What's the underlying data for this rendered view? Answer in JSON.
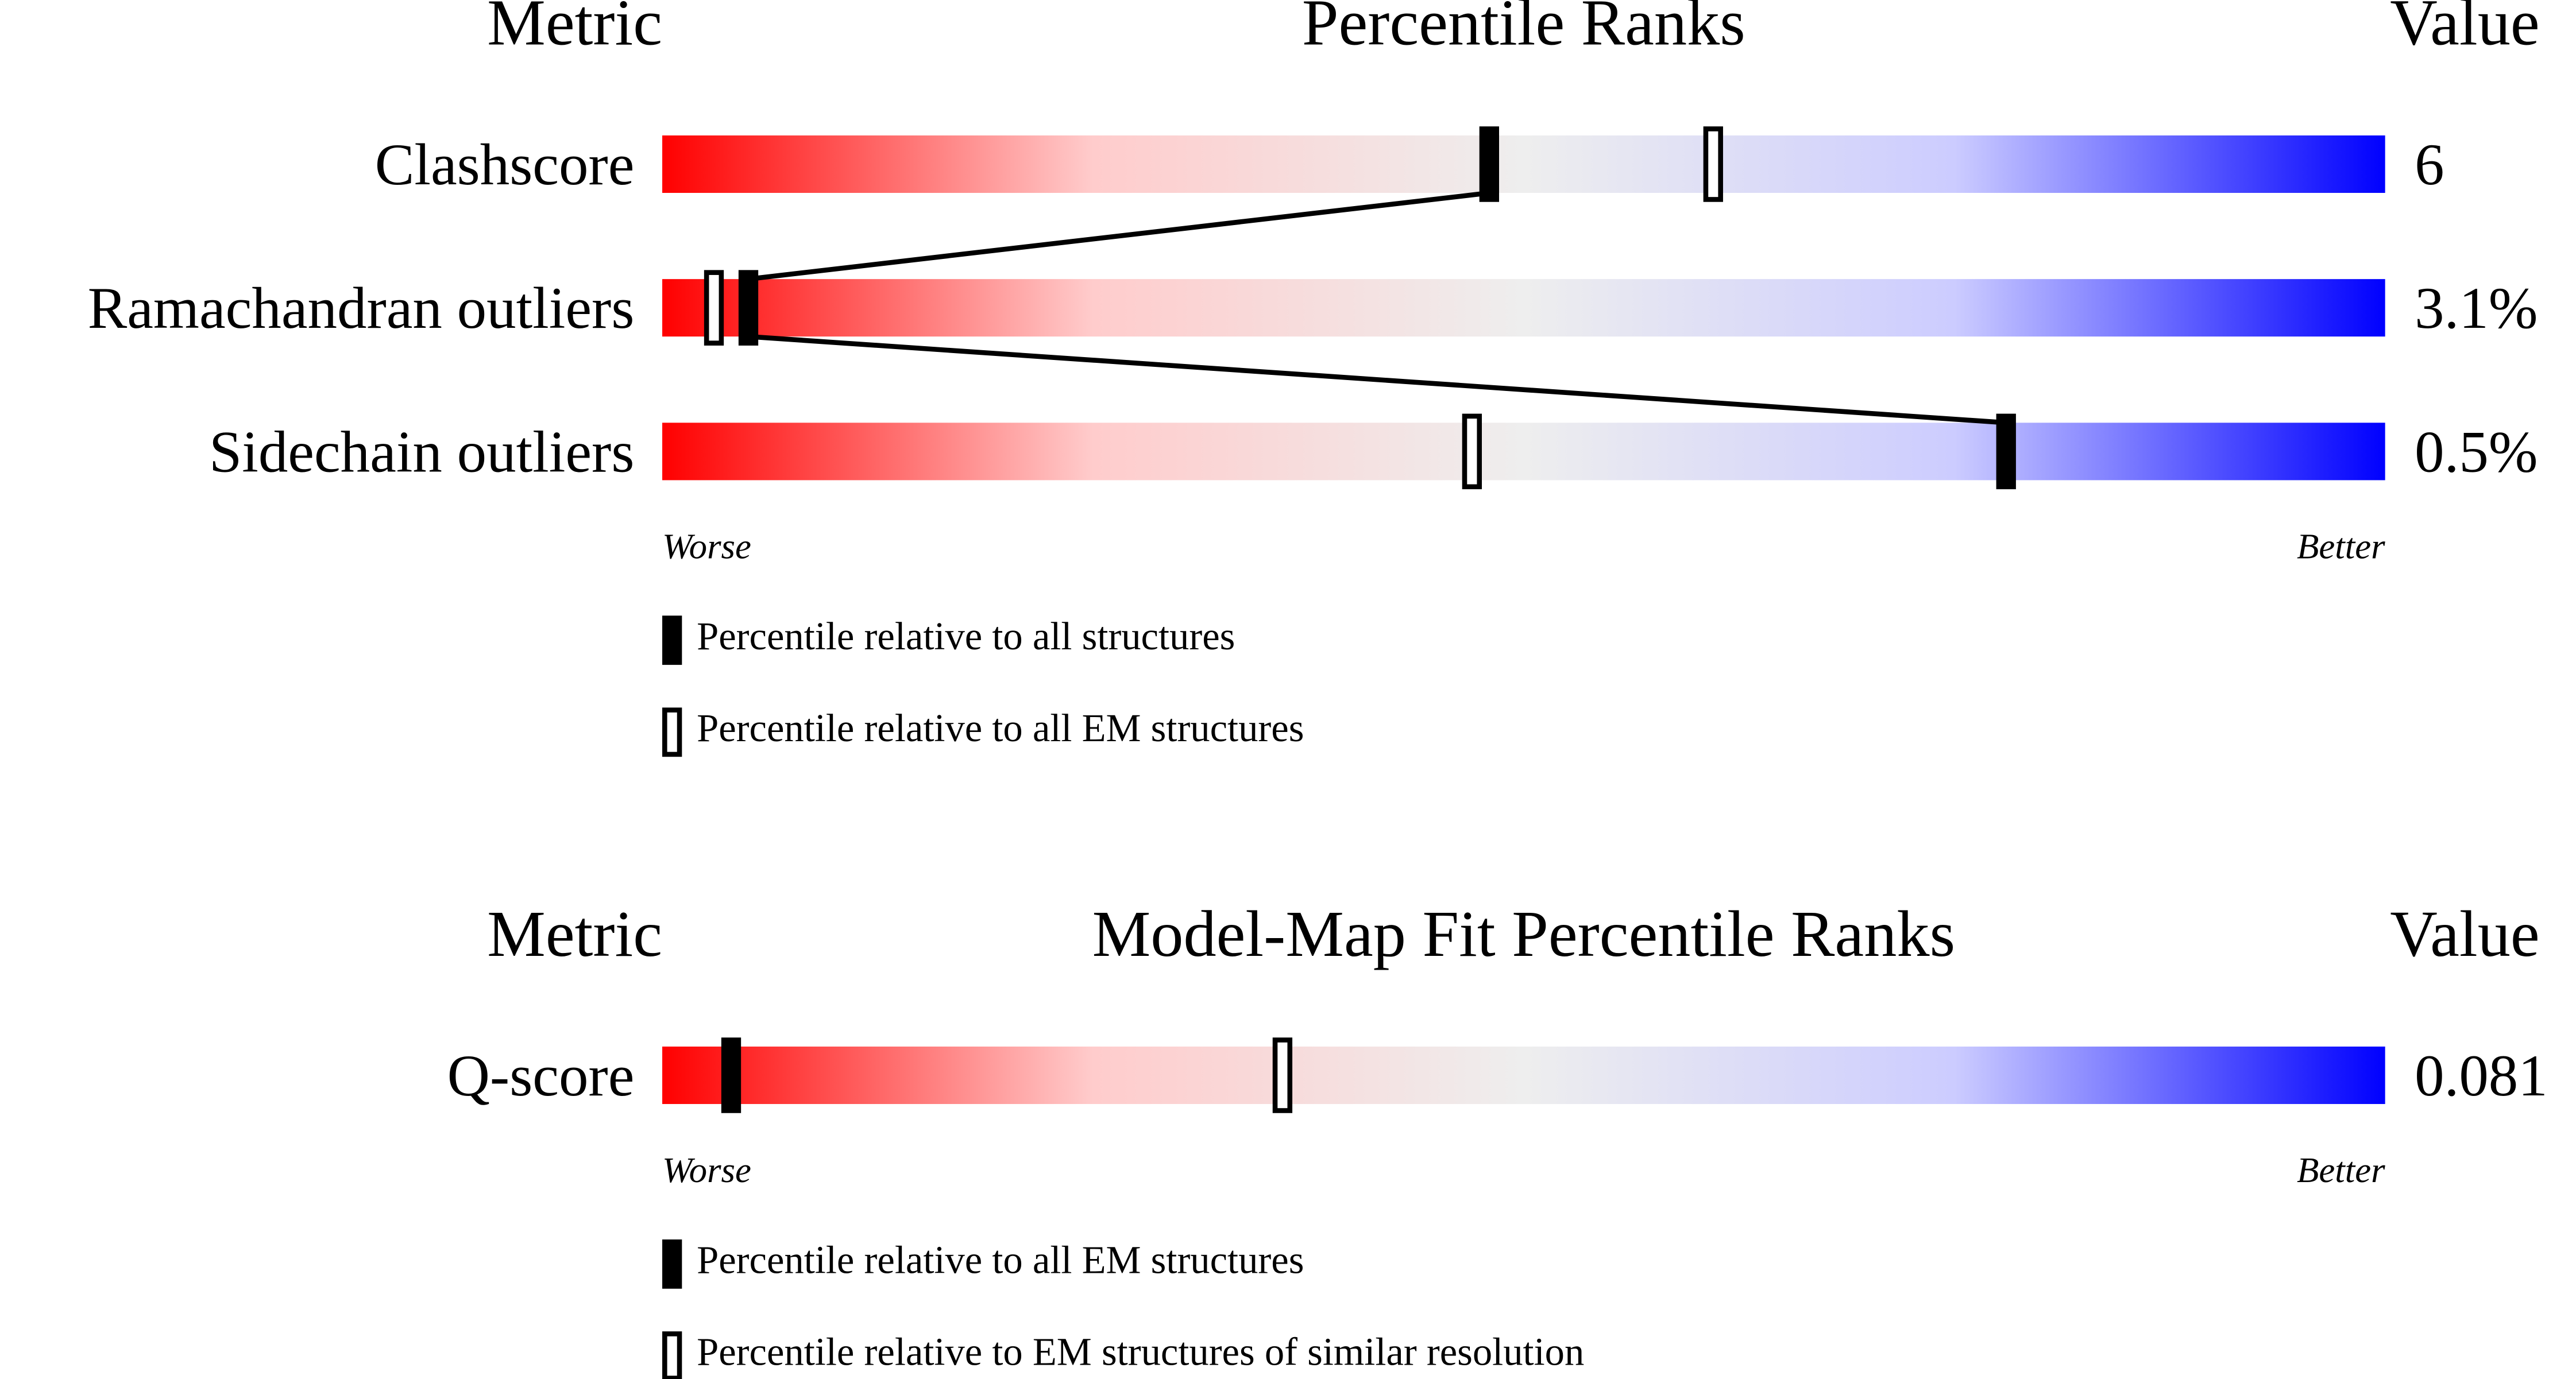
{
  "chart_data": [
    {
      "type": "percentile-slider",
      "metric_header": "Metric",
      "title": "Percentile Ranks",
      "value_header": "Value",
      "categories": [
        "Clashscore",
        "Ramachandran outliers",
        "Sidechain outliers"
      ],
      "values": [
        6,
        3.1,
        0.5
      ],
      "value_labels": [
        "6",
        "3.1%",
        "0.5%"
      ],
      "series": [
        {
          "name": "Percentile relative to all structures",
          "style": "filled",
          "color": "#000000",
          "values": [
            48,
            5,
            78
          ]
        },
        {
          "name": "Percentile relative to all EM structures",
          "style": "hollow",
          "color": "#000000",
          "values": [
            61,
            3,
            47
          ]
        }
      ],
      "connect_series": 0,
      "xlim": [
        0,
        100
      ],
      "low_label": "Worse",
      "high_label": "Better",
      "gradient": [
        "#ff0000",
        "#ffcccc",
        "#eeeeee",
        "#ccccff",
        "#0000ff"
      ]
    },
    {
      "type": "percentile-slider",
      "metric_header": "Metric",
      "title": "Model-Map Fit Percentile Ranks",
      "value_header": "Value",
      "categories": [
        "Q-score"
      ],
      "values": [
        0.081
      ],
      "value_labels": [
        "0.081"
      ],
      "series": [
        {
          "name": "Percentile relative to all EM structures",
          "style": "filled",
          "color": "#000000",
          "values": [
            4
          ]
        },
        {
          "name": "Percentile relative to EM structures of similar resolution",
          "style": "hollow",
          "color": "#000000",
          "values": [
            36
          ]
        }
      ],
      "xlim": [
        0,
        100
      ],
      "low_label": "Worse",
      "high_label": "Better",
      "gradient": [
        "#ff0000",
        "#ffcccc",
        "#eeeeee",
        "#ccccff",
        "#0000ff"
      ]
    }
  ]
}
